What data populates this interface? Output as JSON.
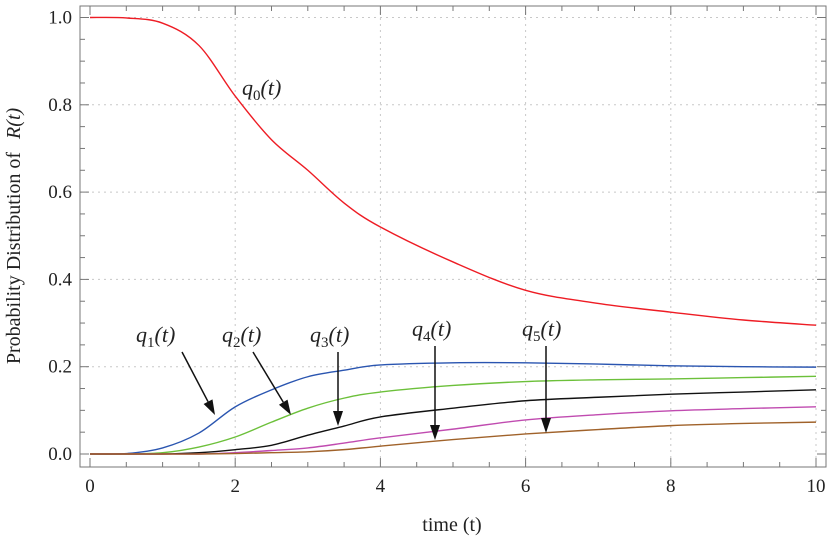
{
  "chart_data": {
    "type": "line",
    "title": "",
    "xlabel": "time (t)",
    "ylabel": {
      "text": "Probability  Distribution of",
      "italic_part": "R(t)"
    },
    "xlim": [
      0,
      10
    ],
    "ylim": [
      0,
      1.0
    ],
    "grid": true,
    "xticks": [
      0,
      2,
      4,
      6,
      8,
      10
    ],
    "xtick_labels": [
      "0",
      "2",
      "4",
      "6",
      "8",
      "10"
    ],
    "yticks": [
      0,
      0.2,
      0.4,
      0.6,
      0.8,
      1.0
    ],
    "ytick_labels": [
      "0.0",
      "0.2",
      "0.4",
      "0.6",
      "0.8",
      "1.0"
    ],
    "x": [
      0,
      0.5,
      1,
      1.5,
      2,
      2.5,
      3,
      3.5,
      4,
      5,
      6,
      7,
      8,
      9,
      10
    ],
    "series": [
      {
        "name": "q0(t)",
        "label": {
          "var": "q",
          "sub": "0",
          "arg": "(t)"
        },
        "color": "#ee1c24",
        "values": [
          1.0,
          0.999,
          0.987,
          0.936,
          0.82,
          0.72,
          0.65,
          0.575,
          0.52,
          0.44,
          0.375,
          0.345,
          0.325,
          0.307,
          0.295
        ]
      },
      {
        "name": "q1(t)",
        "label": {
          "var": "q",
          "sub": "1",
          "arg": "(t)"
        },
        "color": "#2a55b0",
        "values": [
          0,
          0.001,
          0.014,
          0.048,
          0.108,
          0.147,
          0.177,
          0.192,
          0.204,
          0.209,
          0.209,
          0.206,
          0.202,
          0.2,
          0.199
        ]
      },
      {
        "name": "q2(t)",
        "label": {
          "var": "q",
          "sub": "2",
          "arg": "(t)"
        },
        "color": "#6cc03a",
        "values": [
          0,
          0,
          0.003,
          0.016,
          0.039,
          0.073,
          0.105,
          0.128,
          0.142,
          0.157,
          0.166,
          0.17,
          0.172,
          0.175,
          0.178
        ]
      },
      {
        "name": "q3(t)",
        "label": {
          "var": "q",
          "sub": "3",
          "arg": "(t)"
        },
        "color": "#111111",
        "values": [
          0,
          0,
          0,
          0.003,
          0.01,
          0.02,
          0.043,
          0.064,
          0.085,
          0.105,
          0.122,
          0.13,
          0.137,
          0.142,
          0.147
        ]
      },
      {
        "name": "q4(t)",
        "label": {
          "var": "q",
          "sub": "4",
          "arg": "(t)"
        },
        "color": "#c04bb0",
        "values": [
          0,
          0,
          0,
          0,
          0.003,
          0.008,
          0.014,
          0.025,
          0.037,
          0.057,
          0.078,
          0.09,
          0.099,
          0.104,
          0.108
        ]
      },
      {
        "name": "q5(t)",
        "label": {
          "var": "q",
          "sub": "5",
          "arg": "(t)"
        },
        "color": "#a0622a",
        "values": [
          0,
          0,
          0,
          0,
          0.001,
          0.003,
          0.005,
          0.01,
          0.018,
          0.033,
          0.046,
          0.056,
          0.065,
          0.07,
          0.073
        ]
      }
    ]
  }
}
